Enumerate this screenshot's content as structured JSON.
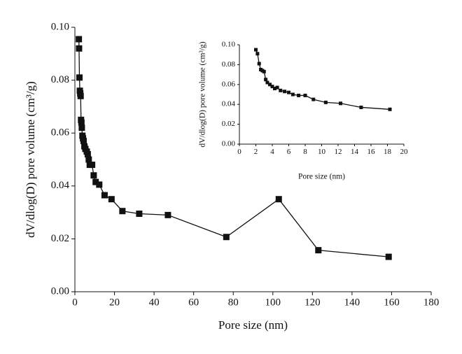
{
  "chart_data": [
    {
      "type": "line",
      "color": "#111111",
      "xlabel": "Pore size (nm)",
      "ylabel": "dV/dlog(D) pore volume (cm³/g)",
      "x": [
        2.0,
        2.1,
        2.3,
        2.5,
        2.7,
        2.9,
        3.1,
        3.3,
        3.5,
        3.8,
        4.1,
        4.4,
        4.8,
        5.3,
        6.0,
        6.5,
        7.0,
        7.5,
        8.7,
        9.5,
        10.5,
        12.3,
        15.0,
        18.5,
        24.0,
        32.5,
        47.0,
        76.5,
        103.0,
        123.0,
        158.5
      ],
      "values": [
        0.0955,
        0.092,
        0.081,
        0.076,
        0.075,
        0.074,
        0.065,
        0.064,
        0.062,
        0.059,
        0.058,
        0.057,
        0.055,
        0.054,
        0.053,
        0.052,
        0.05,
        0.048,
        0.048,
        0.044,
        0.0415,
        0.0405,
        0.0365,
        0.035,
        0.0305,
        0.0295,
        0.029,
        0.0207,
        0.035,
        0.0157,
        0.0132
      ],
      "xlim": [
        0,
        180
      ],
      "xticks": [
        0,
        20,
        40,
        60,
        80,
        100,
        120,
        140,
        160,
        180
      ],
      "ylim": [
        0,
        0.1
      ],
      "yticks": [
        {
          "value": 0,
          "label": "0.00"
        },
        {
          "value": 0.02,
          "label": "0.02"
        },
        {
          "value": 0.04,
          "label": "0.04"
        },
        {
          "value": 0.06,
          "label": "0.06"
        },
        {
          "value": 0.08,
          "label": "0.08"
        },
        {
          "value": 0.1,
          "label": "0.10"
        }
      ]
    },
    {
      "type": "line",
      "color": "#111111",
      "xlabel": "Pore size (nm)",
      "ylabel": "dV/dlog(D) pore volume (cm³/g)",
      "x": [
        2.0,
        2.2,
        2.4,
        2.6,
        2.8,
        3.0,
        3.2,
        3.4,
        3.7,
        4.0,
        4.3,
        4.6,
        5.0,
        5.5,
        6.0,
        6.5,
        7.2,
        8.0,
        9.0,
        10.5,
        12.3,
        14.8,
        18.3
      ],
      "values": [
        0.095,
        0.091,
        0.081,
        0.075,
        0.074,
        0.073,
        0.065,
        0.062,
        0.06,
        0.058,
        0.056,
        0.057,
        0.054,
        0.053,
        0.052,
        0.05,
        0.049,
        0.049,
        0.045,
        0.042,
        0.041,
        0.037,
        0.035
      ],
      "xlim": [
        0,
        20
      ],
      "xticks": [
        0,
        2,
        4,
        6,
        8,
        10,
        12,
        14,
        16,
        18,
        20
      ],
      "ylim": [
        0,
        0.1
      ],
      "yticks": [
        {
          "value": 0,
          "label": "0.00"
        },
        {
          "value": 0.02,
          "label": "0.02"
        },
        {
          "value": 0.04,
          "label": "0.04"
        },
        {
          "value": 0.06,
          "label": "0.06"
        },
        {
          "value": 0.08,
          "label": "0.08"
        },
        {
          "value": 0.1,
          "label": "0.10"
        }
      ]
    }
  ]
}
